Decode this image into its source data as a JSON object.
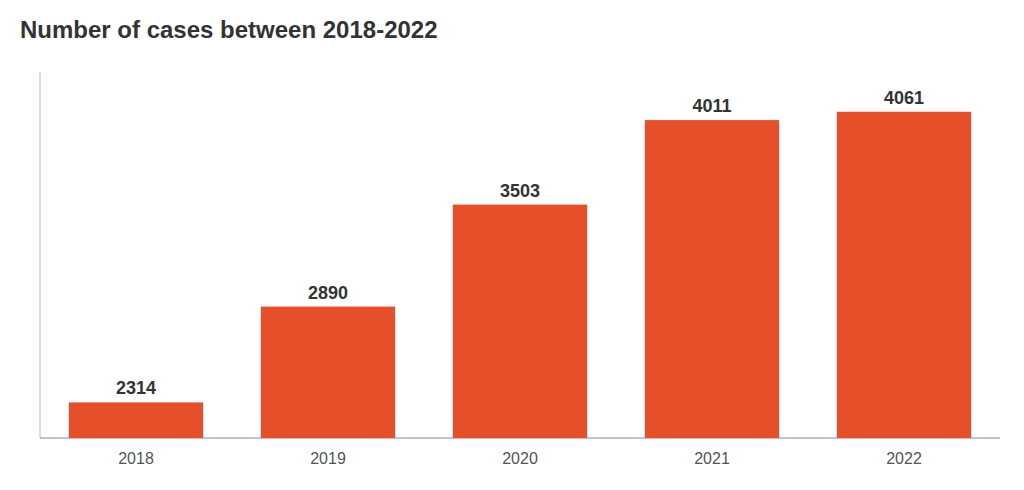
{
  "chart_data": {
    "type": "bar",
    "title": "Number of cases between 2018-2022",
    "categories": [
      "2018",
      "2019",
      "2020",
      "2021",
      "2022"
    ],
    "values": [
      2314,
      2890,
      3503,
      4011,
      4061
    ],
    "color": "#E5502A",
    "ylim": [
      2100,
      4300
    ],
    "data_labels": true,
    "tick_labels": "x",
    "grid": false
  }
}
